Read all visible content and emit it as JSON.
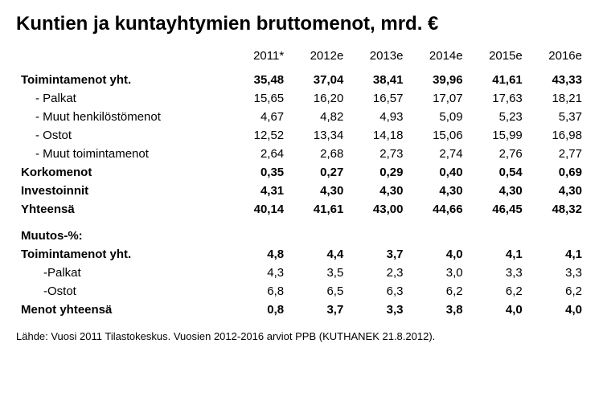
{
  "title": "Kuntien ja kuntayhtymien bruttomenot, mrd. €",
  "columns": [
    "2011*",
    "2012e",
    "2013e",
    "2014e",
    "2015e",
    "2016e"
  ],
  "section1": {
    "toimintamenot": {
      "label": "Toimintamenot yht.",
      "vals": [
        "35,48",
        "37,04",
        "38,41",
        "39,96",
        "41,61",
        "43,33"
      ]
    },
    "palkat": {
      "label": "- Palkat",
      "vals": [
        "15,65",
        "16,20",
        "16,57",
        "17,07",
        "17,63",
        "18,21"
      ]
    },
    "muuthenk": {
      "label": "- Muut henkilöstömenot",
      "vals": [
        "4,67",
        "4,82",
        "4,93",
        "5,09",
        "5,23",
        "5,37"
      ]
    },
    "ostot": {
      "label": "- Ostot",
      "vals": [
        "12,52",
        "13,34",
        "14,18",
        "15,06",
        "15,99",
        "16,98"
      ]
    },
    "muuttoim": {
      "label": "- Muut toimintamenot",
      "vals": [
        "2,64",
        "2,68",
        "2,73",
        "2,74",
        "2,76",
        "2,77"
      ]
    },
    "korkomenot": {
      "label": "Korkomenot",
      "vals": [
        "0,35",
        "0,27",
        "0,29",
        "0,40",
        "0,54",
        "0,69"
      ]
    },
    "investoinnit": {
      "label": "Investoinnit",
      "vals": [
        "4,31",
        "4,30",
        "4,30",
        "4,30",
        "4,30",
        "4,30"
      ]
    },
    "yhteensa": {
      "label": "Yhteensä",
      "vals": [
        "40,14",
        "41,61",
        "43,00",
        "44,66",
        "46,45",
        "48,32"
      ]
    }
  },
  "section2": {
    "header": {
      "label": "Muutos-%:"
    },
    "toimintamenot": {
      "label": "Toimintamenot yht.",
      "vals": [
        "4,8",
        "4,4",
        "3,7",
        "4,0",
        "4,1",
        "4,1"
      ]
    },
    "palkat": {
      "label": "-Palkat",
      "vals": [
        "4,3",
        "3,5",
        "2,3",
        "3,0",
        "3,3",
        "3,3"
      ]
    },
    "ostot": {
      "label": "-Ostot",
      "vals": [
        "6,8",
        "6,5",
        "6,3",
        "6,2",
        "6,2",
        "6,2"
      ]
    },
    "menotyht": {
      "label": "Menot yhteensä",
      "vals": [
        "0,8",
        "3,7",
        "3,3",
        "3,8",
        "4,0",
        "4,0"
      ]
    }
  },
  "footnote": "Lähde: Vuosi 2011 Tilastokeskus. Vuosien 2012-2016 arviot PPB (KUTHANEK 21.8.2012)."
}
